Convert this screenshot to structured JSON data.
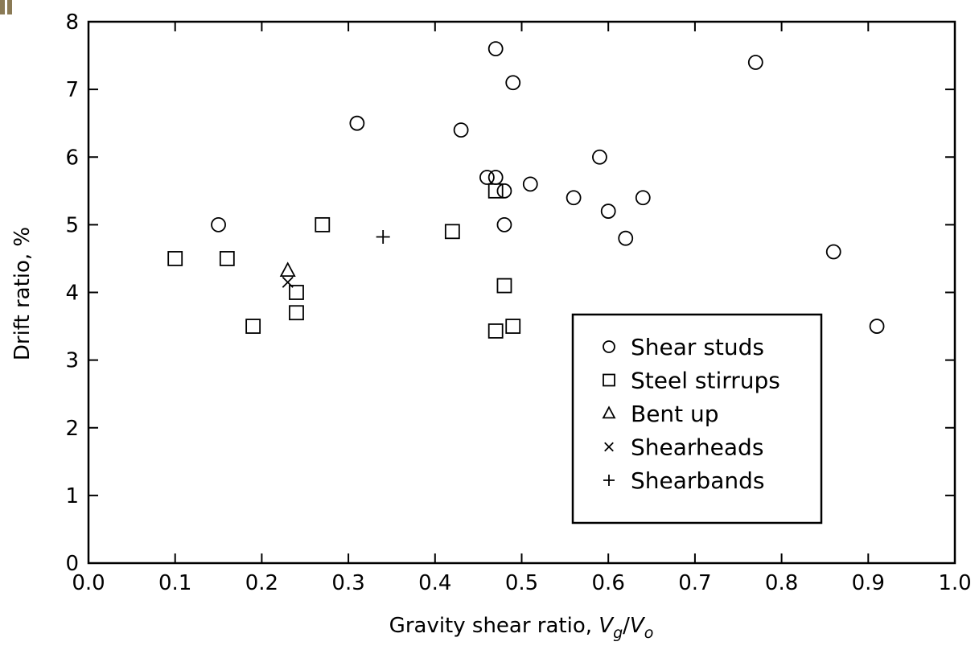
{
  "chart_data": {
    "type": "scatter",
    "title": "",
    "xlabel": "Gravity shear ratio, ",
    "xlabel_math": {
      "v1": "V",
      "sub1": "g",
      "slash": "/",
      "v2": "V",
      "sub2": "o"
    },
    "ylabel": "Drift ratio, %",
    "xlim": [
      0.0,
      1.0
    ],
    "ylim": [
      0,
      8
    ],
    "x_ticks": [
      0.0,
      0.1,
      0.2,
      0.3,
      0.4,
      0.5,
      0.6,
      0.7,
      0.8,
      0.9,
      1.0
    ],
    "x_tick_labels": [
      "0.0",
      "0.1",
      "0.2",
      "0.3",
      "0.4",
      "0.5",
      "0.6",
      "0.7",
      "0.8",
      "0.9",
      "1.0"
    ],
    "y_ticks": [
      0,
      1,
      2,
      3,
      4,
      5,
      6,
      7,
      8
    ],
    "y_tick_labels": [
      "0",
      "1",
      "2",
      "3",
      "4",
      "5",
      "6",
      "7",
      "8"
    ],
    "grid": false,
    "legend_position": "bottom-right",
    "series": [
      {
        "name": "Shear studs",
        "marker": "circle",
        "points": [
          [
            0.15,
            5.0
          ],
          [
            0.31,
            6.5
          ],
          [
            0.43,
            6.4
          ],
          [
            0.46,
            5.7
          ],
          [
            0.47,
            5.7
          ],
          [
            0.47,
            7.6
          ],
          [
            0.48,
            5.5
          ],
          [
            0.48,
            5.0
          ],
          [
            0.49,
            7.1
          ],
          [
            0.51,
            5.6
          ],
          [
            0.56,
            5.4
          ],
          [
            0.59,
            6.0
          ],
          [
            0.6,
            5.2
          ],
          [
            0.62,
            4.8
          ],
          [
            0.64,
            5.4
          ],
          [
            0.77,
            7.4
          ],
          [
            0.86,
            4.6
          ],
          [
            0.91,
            3.5
          ]
        ]
      },
      {
        "name": "Steel stirrups",
        "marker": "square",
        "points": [
          [
            0.1,
            4.5
          ],
          [
            0.16,
            4.5
          ],
          [
            0.19,
            3.5
          ],
          [
            0.24,
            4.0
          ],
          [
            0.24,
            3.7
          ],
          [
            0.27,
            5.0
          ],
          [
            0.42,
            4.9
          ],
          [
            0.47,
            5.5
          ],
          [
            0.48,
            4.1
          ],
          [
            0.47,
            3.43
          ],
          [
            0.49,
            3.5
          ]
        ]
      },
      {
        "name": "Bent up",
        "marker": "triangle",
        "points": [
          [
            0.23,
            4.32
          ]
        ]
      },
      {
        "name": "Shearheads",
        "marker": "x",
        "points": [
          [
            0.23,
            4.15
          ]
        ]
      },
      {
        "name": "Shearbands",
        "marker": "plus",
        "points": [
          [
            0.34,
            4.82
          ]
        ]
      }
    ]
  }
}
